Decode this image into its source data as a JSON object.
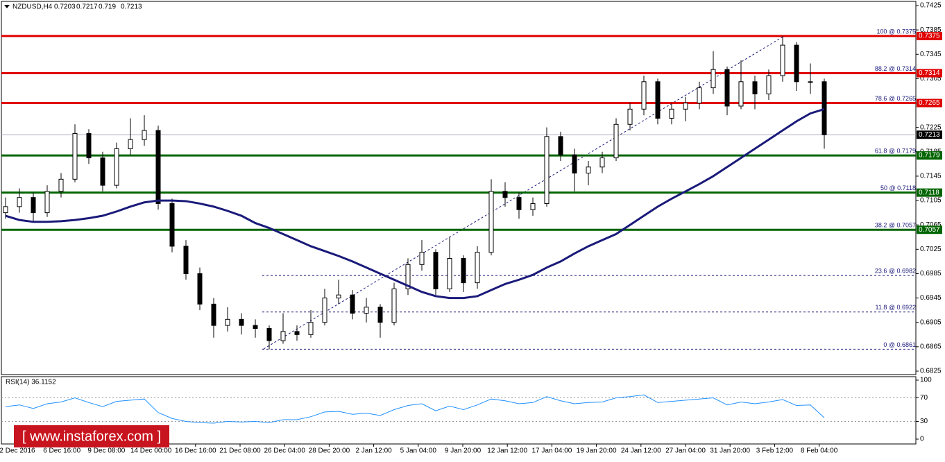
{
  "chart_data": {
    "type": "candlestick",
    "symbol": "NZDUSD,H4",
    "ohlc": [
      0.7203,
      0.7217,
      0.719,
      0.7213
    ],
    "ylim": [
      0.6825,
      0.7425
    ],
    "yticks": [
      0.7425,
      0.7385,
      0.7345,
      0.7305,
      0.7265,
      0.7225,
      0.7185,
      0.7145,
      0.7105,
      0.7065,
      0.7025,
      0.6985,
      0.6945,
      0.6905,
      0.6865,
      0.6825
    ],
    "x_labels": [
      "2 Dec 2016",
      "6 Dec 16:00",
      "9 Dec 08:00",
      "14 Dec 00:00",
      "16 Dec 16:00",
      "21 Dec 08:00",
      "26 Dec 04:00",
      "28 Dec 20:00",
      "2 Jan 12:00",
      "5 Jan 04:00",
      "9 Jan 20:00",
      "12 Jan 12:00",
      "17 Jan 04:00",
      "19 Jan 20:00",
      "24 Jan 12:00",
      "27 Jan 04:00",
      "31 Jan 20:00",
      "3 Feb 12:00",
      "8 Feb 04:00"
    ],
    "candles": [
      [
        0.7085,
        0.711,
        0.7075,
        0.7095
      ],
      [
        0.7095,
        0.7125,
        0.7085,
        0.711
      ],
      [
        0.711,
        0.7118,
        0.707,
        0.7085
      ],
      [
        0.7085,
        0.713,
        0.7078,
        0.712
      ],
      [
        0.712,
        0.715,
        0.711,
        0.714
      ],
      [
        0.714,
        0.723,
        0.7135,
        0.7215
      ],
      [
        0.7215,
        0.7222,
        0.7165,
        0.7175
      ],
      [
        0.7175,
        0.7185,
        0.712,
        0.713
      ],
      [
        0.713,
        0.72,
        0.7125,
        0.719
      ],
      [
        0.719,
        0.724,
        0.718,
        0.7205
      ],
      [
        0.7205,
        0.7245,
        0.7195,
        0.722
      ],
      [
        0.722,
        0.7228,
        0.709,
        0.71
      ],
      [
        0.71,
        0.7108,
        0.702,
        0.703
      ],
      [
        0.703,
        0.704,
        0.6975,
        0.6985
      ],
      [
        0.6985,
        0.6995,
        0.6925,
        0.6935
      ],
      [
        0.6935,
        0.6945,
        0.688,
        0.69
      ],
      [
        0.69,
        0.693,
        0.689,
        0.691
      ],
      [
        0.691,
        0.692,
        0.6885,
        0.69
      ],
      [
        0.69,
        0.691,
        0.688,
        0.6895
      ],
      [
        0.6895,
        0.69,
        0.6861,
        0.6875
      ],
      [
        0.6875,
        0.692,
        0.687,
        0.689
      ],
      [
        0.689,
        0.69,
        0.6875,
        0.6885
      ],
      [
        0.6885,
        0.6925,
        0.688,
        0.6905
      ],
      [
        0.6905,
        0.696,
        0.69,
        0.6945
      ],
      [
        0.6945,
        0.6975,
        0.6935,
        0.695
      ],
      [
        0.695,
        0.6958,
        0.691,
        0.692
      ],
      [
        0.692,
        0.6945,
        0.6905,
        0.693
      ],
      [
        0.693,
        0.6935,
        0.688,
        0.6905
      ],
      [
        0.6905,
        0.697,
        0.69,
        0.696
      ],
      [
        0.696,
        0.701,
        0.695,
        0.7
      ],
      [
        0.7,
        0.704,
        0.699,
        0.702
      ],
      [
        0.702,
        0.7025,
        0.695,
        0.696
      ],
      [
        0.696,
        0.7045,
        0.6955,
        0.701
      ],
      [
        0.701,
        0.7015,
        0.6955,
        0.697
      ],
      [
        0.697,
        0.703,
        0.696,
        0.702
      ],
      [
        0.702,
        0.714,
        0.7015,
        0.712
      ],
      [
        0.712,
        0.7135,
        0.7095,
        0.711
      ],
      [
        0.711,
        0.7118,
        0.7075,
        0.709
      ],
      [
        0.709,
        0.711,
        0.708,
        0.71
      ],
      [
        0.71,
        0.7225,
        0.7095,
        0.721
      ],
      [
        0.721,
        0.7218,
        0.717,
        0.718
      ],
      [
        0.718,
        0.719,
        0.712,
        0.715
      ],
      [
        0.715,
        0.717,
        0.713,
        0.716
      ],
      [
        0.716,
        0.7185,
        0.715,
        0.7175
      ],
      [
        0.7175,
        0.724,
        0.717,
        0.723
      ],
      [
        0.723,
        0.7265,
        0.722,
        0.7255
      ],
      [
        0.7255,
        0.731,
        0.7245,
        0.73
      ],
      [
        0.73,
        0.7305,
        0.723,
        0.724
      ],
      [
        0.724,
        0.7265,
        0.723,
        0.7255
      ],
      [
        0.7255,
        0.7275,
        0.7235,
        0.7265
      ],
      [
        0.7265,
        0.73,
        0.7255,
        0.729
      ],
      [
        0.729,
        0.735,
        0.728,
        0.732
      ],
      [
        0.732,
        0.7325,
        0.7245,
        0.726
      ],
      [
        0.726,
        0.7335,
        0.7255,
        0.73
      ],
      [
        0.73,
        0.731,
        0.7255,
        0.728
      ],
      [
        0.728,
        0.732,
        0.727,
        0.731
      ],
      [
        0.731,
        0.7375,
        0.73,
        0.736
      ],
      [
        0.736,
        0.7365,
        0.7285,
        0.73
      ],
      [
        0.73,
        0.733,
        0.728,
        0.73
      ],
      [
        0.73,
        0.7305,
        0.719,
        0.7213
      ]
    ],
    "moving_average": {
      "color": "#1a1a7a",
      "values": [
        0.708,
        0.7073,
        0.707,
        0.707,
        0.7071,
        0.7073,
        0.7076,
        0.708,
        0.7087,
        0.7095,
        0.7102,
        0.7105,
        0.7105,
        0.7104,
        0.71,
        0.7095,
        0.7088,
        0.708,
        0.7068,
        0.706,
        0.705,
        0.704,
        0.703,
        0.7022,
        0.7014,
        0.7005,
        0.6995,
        0.6985,
        0.6975,
        0.6965,
        0.6955,
        0.6948,
        0.6945,
        0.6945,
        0.6948,
        0.6958,
        0.6968,
        0.6975,
        0.6983,
        0.6995,
        0.7005,
        0.7018,
        0.703,
        0.704,
        0.705,
        0.7065,
        0.708,
        0.7095,
        0.7108,
        0.712,
        0.7132,
        0.7145,
        0.716,
        0.7175,
        0.719,
        0.7205,
        0.722,
        0.7235,
        0.7248,
        0.7255
      ]
    },
    "current_price": 0.7213,
    "fib_levels": [
      {
        "label": "100 @ 0.7375",
        "value": 0.7375,
        "color": "#e00000",
        "style": "solid"
      },
      {
        "label": "88.2 @ 0.7314",
        "value": 0.7314,
        "color": "#e00000",
        "style": "solid"
      },
      {
        "label": "78.6 @ 0.7265",
        "value": 0.7265,
        "color": "#e00000",
        "style": "solid"
      },
      {
        "label": "61.8 @ 0.7179",
        "value": 0.7179,
        "color": "#006400",
        "style": "solid"
      },
      {
        "label": "50 @ 0.7118",
        "value": 0.7118,
        "color": "#006400",
        "style": "solid"
      },
      {
        "label": "38.2 @ 0.7057",
        "value": 0.7057,
        "color": "#006400",
        "style": "solid"
      },
      {
        "label": "23.6 @ 0.6982",
        "value": 0.6982,
        "color": "#1a1a7a",
        "style": "dotted"
      },
      {
        "label": "11.8 @ 0.6922",
        "value": 0.6922,
        "color": "#1a1a7a",
        "style": "dotted"
      },
      {
        "label": "0 @ 0.6861",
        "value": 0.6861,
        "color": "#1a1a7a",
        "style": "dotted"
      }
    ],
    "rsi": {
      "title": "RSI(14) 36.1152",
      "color": "#1e90ff",
      "ylim": [
        0,
        100
      ],
      "yticks": [
        100,
        70,
        30,
        0
      ],
      "levels": [
        70,
        30
      ],
      "values": [
        55,
        58,
        52,
        60,
        63,
        70,
        62,
        55,
        64,
        66,
        68,
        45,
        35,
        30,
        28,
        27,
        30,
        29,
        30,
        28,
        33,
        33,
        38,
        46,
        47,
        42,
        44,
        40,
        50,
        57,
        60,
        48,
        56,
        50,
        58,
        68,
        65,
        60,
        62,
        72,
        65,
        60,
        62,
        63,
        70,
        72,
        75,
        62,
        64,
        66,
        68,
        70,
        58,
        63,
        60,
        63,
        67,
        57,
        58,
        36.1152
      ]
    },
    "watermark": "[ www.instaforex.com ]"
  }
}
